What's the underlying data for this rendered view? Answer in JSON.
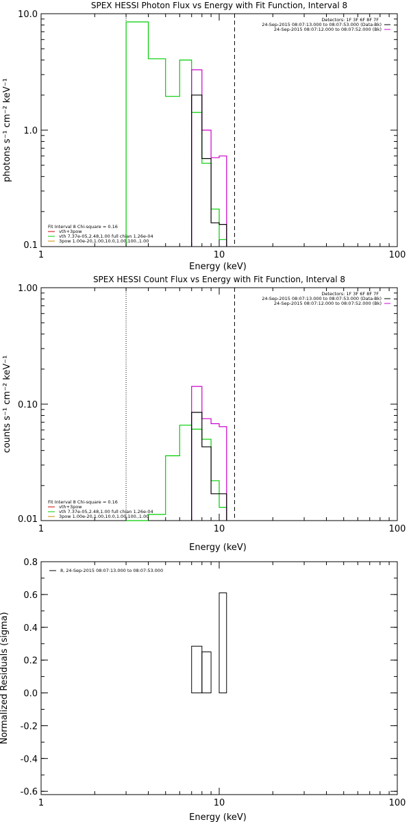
{
  "chart_data": [
    {
      "type": "line",
      "title": "SPEX HESSI Photon Flux vs Energy with Fit Function, Interval 8",
      "xlabel": "Energy (keV)",
      "ylabel": "photons s⁻¹ cm⁻² keV⁻¹",
      "xscale": "log",
      "yscale": "log",
      "xlim": [
        1,
        100
      ],
      "ylim": [
        0.1,
        10
      ],
      "xticks": [
        {
          "v": 1,
          "label": "1"
        },
        {
          "v": 10,
          "label": "10"
        },
        {
          "v": 100,
          "label": "100"
        }
      ],
      "yticks": [
        {
          "v": 0.1,
          "label": "0.1"
        },
        {
          "v": 1,
          "label": "1.0"
        },
        {
          "v": 10,
          "label": "10.0"
        }
      ],
      "dotted_x": 3,
      "dashed_x": 12.2,
      "header": [
        "Detectors: 1F 3F 6F 8F 7F",
        "24-Sep-2015 08:07:13.000 to 08:07:53.000 (Data-Bk)",
        "24-Sep-2015 08:07:12.000 to 08:07:52.000 (Bk)"
      ],
      "header_colors": [
        "",
        "#000000",
        "#cc00cc"
      ],
      "legend": [
        {
          "text": "Fit Interval  8    Chi-square = 0.16",
          "color": ""
        },
        {
          "text": "vth+3pow",
          "color": "#cc0000"
        },
        {
          "text": "vth 7.37e-05,2.48,1.00   full chian 1.26e-04",
          "color": "#00cc00"
        },
        {
          "text": "3pow 1.00e-20,1.00,10.0,1.00,100.,1.00",
          "color": "#cc8800"
        }
      ],
      "series": [
        {
          "color": "#00cc00",
          "edges": [
            3,
            4,
            5,
            6,
            7,
            8,
            9,
            10,
            11
          ],
          "values": [
            8.5,
            4.1,
            1.95,
            4.0,
            1.42,
            0.52,
            0.21,
            0.115
          ]
        },
        {
          "color": "#cc00cc",
          "edges": [
            7,
            8,
            9,
            10,
            11
          ],
          "values": [
            3.3,
            1.0,
            0.58,
            0.6
          ]
        },
        {
          "color": "#000000",
          "edges": [
            7,
            8,
            9,
            10,
            11
          ],
          "values": [
            2.0,
            0.57,
            0.16,
            0.155
          ]
        }
      ]
    },
    {
      "type": "line",
      "title": "SPEX HESSI Count Flux vs Energy with Fit Function, Interval 8",
      "xlabel": "Energy (keV)",
      "ylabel": "counts s⁻¹ cm⁻² keV⁻¹",
      "xscale": "log",
      "yscale": "log",
      "xlim": [
        1,
        100
      ],
      "ylim": [
        0.01,
        1
      ],
      "xticks": [
        {
          "v": 1,
          "label": "1"
        },
        {
          "v": 10,
          "label": "10"
        },
        {
          "v": 100,
          "label": "100"
        }
      ],
      "yticks": [
        {
          "v": 0.01,
          "label": "0.01"
        },
        {
          "v": 0.1,
          "label": "0.10"
        },
        {
          "v": 1,
          "label": "1.00"
        }
      ],
      "dotted_x": 3,
      "dashed_x": 12.2,
      "header": [
        "Detectors: 1F 3F 6F 8F 7F",
        "24-Sep-2015 08:07:13.000 to 08:07:53.000 (Data-Bk)",
        "24-Sep-2015 08:07:12.000 to 08:07:52.000 (Bk)"
      ],
      "header_colors": [
        "",
        "#000000",
        "#cc00cc"
      ],
      "legend": [
        {
          "text": "Fit Interval  8    Chi-square = 0.16",
          "color": ""
        },
        {
          "text": "vth+3pow",
          "color": "#cc0000"
        },
        {
          "text": "vth 7.37e-05,2.48,1.00   full chian 1.26e-04",
          "color": "#00cc00"
        },
        {
          "text": "3pow 1.00e-20,1.00,10.0,1.00,100.,1.00",
          "color": "#cc8800"
        }
      ],
      "series": [
        {
          "color": "#00cc00",
          "edges": [
            3,
            4,
            5,
            6,
            7,
            8,
            9,
            10,
            11
          ],
          "values": [
            0.0085,
            0.0113,
            0.036,
            0.066,
            0.061,
            0.05,
            0.022,
            0.013
          ]
        },
        {
          "color": "#cc00cc",
          "edges": [
            7,
            8,
            9,
            10,
            11
          ],
          "values": [
            0.142,
            0.075,
            0.068,
            0.064
          ]
        },
        {
          "color": "#000000",
          "edges": [
            7,
            8,
            9,
            10,
            11
          ],
          "values": [
            0.085,
            0.043,
            0.017,
            0.017
          ]
        }
      ]
    },
    {
      "type": "bar",
      "title": "",
      "xlabel": "Energy (keV)",
      "ylabel": "Normalized Residuals (sigma)",
      "xscale": "log",
      "yscale": "linear",
      "xlim": [
        1,
        100
      ],
      "ylim": [
        -0.62,
        0.8
      ],
      "xticks": [
        {
          "v": 1,
          "label": "1"
        },
        {
          "v": 10,
          "label": "10"
        },
        {
          "v": 100,
          "label": "100"
        }
      ],
      "yticks": [
        {
          "v": -0.6,
          "label": "-0.6"
        },
        {
          "v": -0.4,
          "label": "-0.4"
        },
        {
          "v": -0.2,
          "label": "-0.2"
        },
        {
          "v": 0,
          "label": "0.0"
        },
        {
          "v": 0.2,
          "label": "0.2"
        },
        {
          "v": 0.4,
          "label": "0.4"
        },
        {
          "v": 0.6,
          "label": "0.6"
        },
        {
          "v": 0.8,
          "label": "0.8"
        }
      ],
      "legend": [
        {
          "text": "8, 24-Sep-2015 08:07:13.000 to 08:07:53.000",
          "color": "#000000"
        }
      ],
      "series": [
        {
          "color": "#000000",
          "edges": [
            7,
            8,
            9,
            10,
            11
          ],
          "values": [
            0.285,
            0.25,
            null,
            0.61
          ]
        }
      ]
    }
  ]
}
